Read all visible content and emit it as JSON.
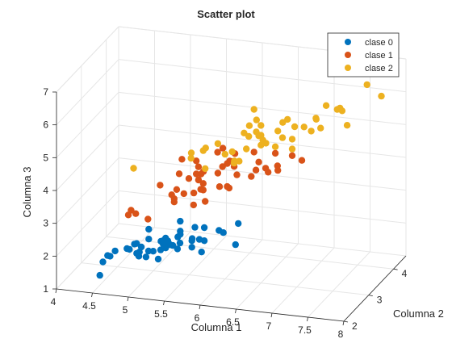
{
  "chart_data": {
    "type": "scatter",
    "title": "Scatter plot",
    "xlabel": "Columna 1",
    "ylabel": "Columna 2",
    "zlabel": "Columna 3",
    "xlim": [
      4,
      8
    ],
    "ylim": [
      2,
      4.5
    ],
    "zlim": [
      1,
      7
    ],
    "xticks": [
      "4",
      "4.5",
      "5",
      "5.5",
      "6",
      "6.5",
      "7",
      "7.5",
      "8"
    ],
    "yticks": [
      "2",
      "3",
      "4"
    ],
    "zticks": [
      "1",
      "2",
      "3",
      "4",
      "5",
      "6",
      "7"
    ],
    "grid": true,
    "legend": "top-right",
    "series": [
      {
        "name": "clase 0",
        "color": "#0072BD",
        "points": [
          [
            4.3,
            3.0,
            1.1
          ],
          [
            4.4,
            2.9,
            1.4
          ],
          [
            4.4,
            3.0,
            1.3
          ],
          [
            4.4,
            3.2,
            1.3
          ],
          [
            4.5,
            2.3,
            1.3
          ],
          [
            4.6,
            3.1,
            1.5
          ],
          [
            4.6,
            3.4,
            1.4
          ],
          [
            4.6,
            3.6,
            1.0
          ],
          [
            4.6,
            3.2,
            1.4
          ],
          [
            4.7,
            3.2,
            1.3
          ],
          [
            4.7,
            3.2,
            1.6
          ],
          [
            4.8,
            3.4,
            1.6
          ],
          [
            4.8,
            3.0,
            1.4
          ],
          [
            4.8,
            3.4,
            1.9
          ],
          [
            4.8,
            3.1,
            1.6
          ],
          [
            4.8,
            3.0,
            1.4
          ],
          [
            4.9,
            3.0,
            1.4
          ],
          [
            4.9,
            3.1,
            1.5
          ],
          [
            4.9,
            3.6,
            1.4
          ],
          [
            5.0,
            3.6,
            1.4
          ],
          [
            5.0,
            3.4,
            1.5
          ],
          [
            5.0,
            3.0,
            1.6
          ],
          [
            5.0,
            3.4,
            1.6
          ],
          [
            5.0,
            3.2,
            1.2
          ],
          [
            5.0,
            3.5,
            1.3
          ],
          [
            5.0,
            3.5,
            1.6
          ],
          [
            5.0,
            3.3,
            1.4
          ],
          [
            5.1,
            3.5,
            1.4
          ],
          [
            5.1,
            3.8,
            1.5
          ],
          [
            5.1,
            3.7,
            1.5
          ],
          [
            5.1,
            3.3,
            1.7
          ],
          [
            5.1,
            3.4,
            1.5
          ],
          [
            5.1,
            3.8,
            1.9
          ],
          [
            5.1,
            3.8,
            1.6
          ],
          [
            5.2,
            3.5,
            1.5
          ],
          [
            5.2,
            3.4,
            1.4
          ],
          [
            5.2,
            4.1,
            1.5
          ],
          [
            5.3,
            3.7,
            1.5
          ],
          [
            5.4,
            3.9,
            1.7
          ],
          [
            5.4,
            3.7,
            1.5
          ],
          [
            5.4,
            3.9,
            1.3
          ],
          [
            5.4,
            3.4,
            1.7
          ],
          [
            5.4,
            3.4,
            1.5
          ],
          [
            5.5,
            4.2,
            1.4
          ],
          [
            5.5,
            3.5,
            1.3
          ],
          [
            5.7,
            4.4,
            1.5
          ],
          [
            5.7,
            3.8,
            1.7
          ],
          [
            5.8,
            4.0,
            1.2
          ]
        ]
      },
      {
        "name": "clase 1",
        "color": "#D95319",
        "points": [
          [
            4.9,
            2.4,
            3.3
          ],
          [
            5.0,
            2.0,
            3.5
          ],
          [
            5.0,
            2.3,
            3.3
          ],
          [
            5.1,
            2.5,
            3.0
          ],
          [
            5.2,
            2.7,
            3.9
          ],
          [
            5.4,
            3.0,
            4.5
          ],
          [
            5.5,
            2.3,
            4.0
          ],
          [
            5.5,
            2.4,
            3.8
          ],
          [
            5.5,
            2.4,
            3.7
          ],
          [
            5.5,
            2.5,
            4.0
          ],
          [
            5.5,
            2.6,
            4.4
          ],
          [
            5.6,
            2.9,
            3.6
          ],
          [
            5.6,
            3.0,
            4.5
          ],
          [
            5.6,
            2.5,
            3.9
          ],
          [
            5.6,
            3.0,
            4.1
          ],
          [
            5.6,
            2.7,
            4.2
          ],
          [
            5.7,
            2.8,
            4.5
          ],
          [
            5.7,
            2.6,
            3.5
          ],
          [
            5.7,
            3.0,
            4.2
          ],
          [
            5.7,
            2.9,
            4.2
          ],
          [
            5.7,
            2.8,
            4.1
          ],
          [
            5.8,
            2.7,
            4.1
          ],
          [
            5.8,
            2.7,
            3.9
          ],
          [
            5.8,
            2.6,
            4.0
          ],
          [
            5.9,
            3.0,
            4.2
          ],
          [
            5.9,
            3.2,
            4.8
          ],
          [
            6.0,
            2.2,
            4.0
          ],
          [
            6.0,
            2.9,
            4.5
          ],
          [
            6.0,
            2.7,
            5.1
          ],
          [
            6.0,
            3.4,
            4.5
          ],
          [
            6.1,
            2.9,
            4.7
          ],
          [
            6.1,
            2.8,
            4.0
          ],
          [
            6.1,
            2.8,
            4.7
          ],
          [
            6.1,
            3.0,
            4.6
          ],
          [
            6.2,
            2.2,
            4.5
          ],
          [
            6.2,
            2.9,
            4.3
          ],
          [
            6.3,
            3.3,
            4.7
          ],
          [
            6.3,
            2.5,
            4.9
          ],
          [
            6.3,
            2.3,
            4.4
          ],
          [
            6.4,
            3.2,
            4.5
          ],
          [
            6.4,
            2.9,
            4.3
          ],
          [
            6.5,
            2.8,
            4.6
          ],
          [
            6.6,
            2.9,
            4.6
          ],
          [
            6.6,
            3.0,
            4.4
          ],
          [
            6.7,
            3.1,
            4.4
          ],
          [
            6.7,
            3.0,
            5.0
          ],
          [
            6.8,
            2.8,
            4.8
          ],
          [
            6.9,
            3.1,
            4.9
          ],
          [
            7.0,
            3.2,
            4.7
          ]
        ]
      },
      {
        "name": "clase 2",
        "color": "#EDB120",
        "points": [
          [
            4.9,
            2.5,
            4.5
          ],
          [
            5.6,
            2.8,
            4.9
          ],
          [
            5.7,
            2.5,
            5.0
          ],
          [
            5.8,
            2.7,
            5.1
          ],
          [
            5.8,
            2.8,
            5.1
          ],
          [
            5.9,
            3.0,
            5.1
          ],
          [
            6.0,
            2.2,
            5.0
          ],
          [
            6.0,
            3.0,
            4.8
          ],
          [
            6.1,
            3.0,
            4.9
          ],
          [
            6.2,
            2.8,
            4.8
          ],
          [
            6.2,
            3.4,
            5.4
          ],
          [
            6.3,
            3.3,
            6.0
          ],
          [
            6.3,
            2.9,
            5.6
          ],
          [
            6.3,
            2.5,
            5.0
          ],
          [
            6.3,
            2.7,
            4.9
          ],
          [
            6.3,
            3.4,
            5.6
          ],
          [
            6.4,
            2.7,
            5.3
          ],
          [
            6.4,
            3.2,
            5.3
          ],
          [
            6.4,
            2.8,
            5.6
          ],
          [
            6.4,
            3.1,
            5.5
          ],
          [
            6.5,
            3.0,
            5.8
          ],
          [
            6.5,
            3.2,
            5.1
          ],
          [
            6.5,
            3.0,
            5.5
          ],
          [
            6.5,
            3.0,
            5.2
          ],
          [
            6.7,
            2.5,
            5.8
          ],
          [
            6.7,
            3.3,
            5.7
          ],
          [
            6.7,
            3.1,
            5.6
          ],
          [
            6.7,
            3.0,
            5.2
          ],
          [
            6.8,
            3.0,
            5.5
          ],
          [
            6.8,
            3.2,
            5.9
          ],
          [
            6.9,
            3.2,
            5.7
          ],
          [
            6.9,
            3.1,
            5.4
          ],
          [
            6.9,
            3.1,
            5.1
          ],
          [
            7.1,
            3.0,
            5.9
          ],
          [
            7.2,
            3.6,
            6.1
          ],
          [
            7.2,
            3.2,
            6.0
          ],
          [
            7.2,
            3.0,
            5.8
          ],
          [
            7.3,
            2.9,
            6.3
          ],
          [
            7.4,
            2.8,
            6.1
          ],
          [
            7.6,
            3.0,
            6.6
          ],
          [
            7.7,
            3.8,
            6.7
          ],
          [
            7.7,
            2.6,
            6.9
          ],
          [
            7.7,
            2.8,
            6.7
          ],
          [
            7.7,
            3.0,
            6.1
          ],
          [
            7.9,
            3.8,
            6.4
          ]
        ]
      }
    ]
  }
}
